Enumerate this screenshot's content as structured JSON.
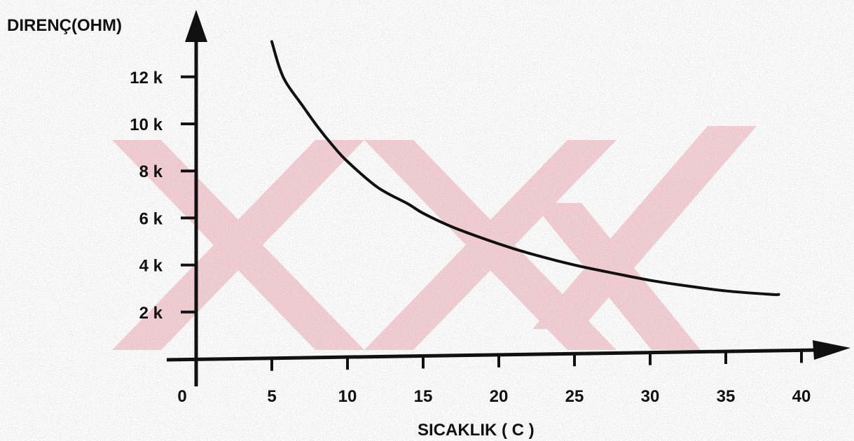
{
  "chart_data": {
    "type": "line",
    "title": "",
    "ylabel": "DIRENÇ(OHM)",
    "xlabel": "SICAKLIK ( C )",
    "xlim": [
      0,
      40
    ],
    "ylim": [
      0,
      12
    ],
    "x_ticks": [
      {
        "value": 0,
        "label": "0"
      },
      {
        "value": 5,
        "label": "5"
      },
      {
        "value": 10,
        "label": "10"
      },
      {
        "value": 15,
        "label": "15"
      },
      {
        "value": 20,
        "label": "20"
      },
      {
        "value": 25,
        "label": "25"
      },
      {
        "value": 30,
        "label": "30"
      },
      {
        "value": 35,
        "label": "35"
      },
      {
        "value": 40,
        "label": "40"
      }
    ],
    "y_ticks": [
      {
        "value": 2,
        "label": "2 k"
      },
      {
        "value": 4,
        "label": "4 k"
      },
      {
        "value": 6,
        "label": "6 k"
      },
      {
        "value": 8,
        "label": "8 k"
      },
      {
        "value": 10,
        "label": "10 k"
      },
      {
        "value": 12,
        "label": "12 k"
      }
    ],
    "grid": false,
    "series": [
      {
        "color": "#111111",
        "x": [
          5,
          5.5,
          6,
          7,
          8,
          9,
          10,
          12,
          14,
          15,
          17,
          20,
          22,
          25,
          28,
          30,
          32,
          35,
          38,
          38.5
        ],
        "y": [
          13.5,
          12.4,
          11.7,
          10.8,
          9.9,
          9.1,
          8.4,
          7.3,
          6.6,
          6.2,
          5.6,
          4.9,
          4.5,
          4.0,
          3.6,
          3.35,
          3.15,
          2.9,
          2.75,
          2.75
        ]
      }
    ]
  }
}
